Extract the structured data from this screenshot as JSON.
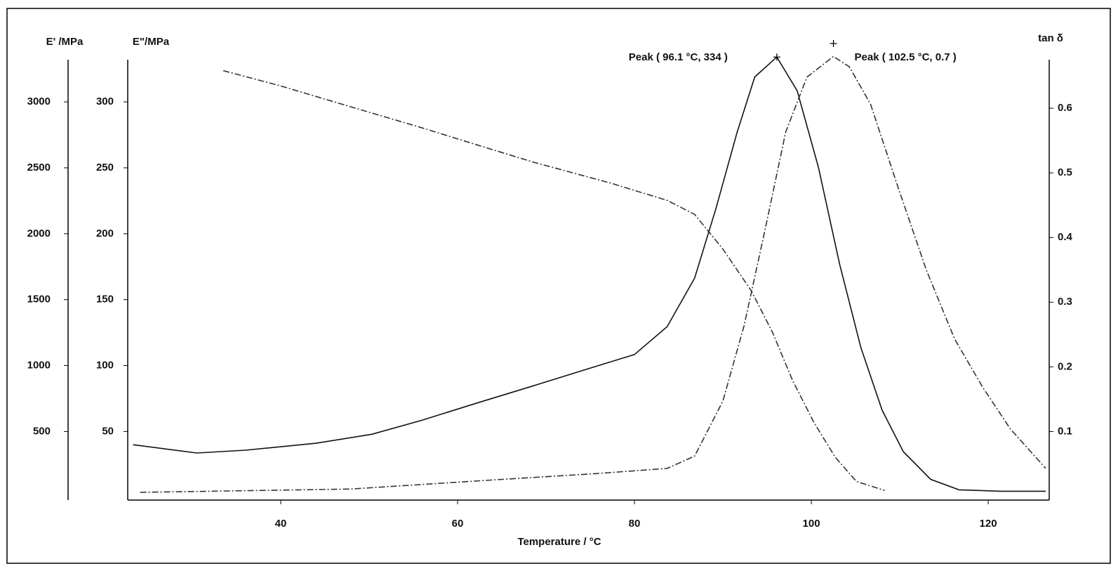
{
  "chart_data": {
    "type": "line",
    "xlabel": "Temperature / °C",
    "ylabel": "E\"/MPa",
    "y2label": "tan δ",
    "y3label": "E' /MPa",
    "xlim": [
      22.7,
      126.9
    ],
    "xticks": [
      40,
      60,
      80,
      100,
      120
    ],
    "ylim": [
      -2,
      332
    ],
    "yticks": [
      50,
      100,
      150,
      200,
      250,
      300
    ],
    "y2lim": [
      -0.006,
      0.675
    ],
    "y2ticks": [
      0.1,
      0.2,
      0.3,
      0.4,
      0.5,
      0.6
    ],
    "y3lim": [
      -20,
      3320
    ],
    "y3ticks": [
      500,
      1000,
      1500,
      2000,
      2500,
      3000
    ],
    "series": [
      {
        "axis": "y3",
        "color": "#333333",
        "style": "dashdot",
        "x": [
          33.5,
          40,
          47.9,
          55.9,
          62.2,
          68.6,
          77.3,
          83.7,
          86.8,
          90.0,
          93.2,
          95.6,
          97.9,
          100.3,
          102.7,
          105.1,
          108.3
        ],
        "values": [
          3237,
          3121,
          2963,
          2805,
          2674,
          2542,
          2384,
          2253,
          2147,
          1884,
          1568,
          1253,
          884,
          568,
          305,
          121,
          53
        ]
      },
      {
        "axis": "y",
        "color": "#111111",
        "style": "solid",
        "x": [
          23.3,
          30.5,
          36.0,
          44.0,
          50.3,
          55.9,
          62.2,
          68.6,
          74.9,
          80,
          83.7,
          86.8,
          89.2,
          91.6,
          93.6,
          96.1,
          98.4,
          100.8,
          103.2,
          105.6,
          108,
          110.4,
          113.5,
          116.7,
          121.4,
          126.5
        ],
        "values": [
          40,
          33.7,
          35.8,
          41.1,
          47.9,
          58.4,
          71.6,
          84.7,
          97.9,
          108.4,
          129.5,
          166.3,
          218.9,
          276.8,
          318.9,
          334,
          308.4,
          250.5,
          176.8,
          113.7,
          66.3,
          34.7,
          13.7,
          5.8,
          4.7,
          4.7
        ]
      },
      {
        "axis": "y2",
        "color": "#333333",
        "style": "dashdot",
        "x": [
          24.1,
          47.9,
          63.8,
          75.7,
          83.7,
          86.8,
          90.0,
          92.4,
          94.8,
          97.1,
          99.5,
          102.5,
          104.3,
          106.7,
          109.8,
          113.0,
          116.2,
          119.4,
          122.5,
          126.5
        ],
        "values": [
          0.006,
          0.011,
          0.025,
          0.035,
          0.043,
          0.062,
          0.147,
          0.264,
          0.414,
          0.563,
          0.648,
          0.68,
          0.664,
          0.606,
          0.478,
          0.35,
          0.243,
          0.168,
          0.104,
          0.043
        ]
      }
    ],
    "annotations": [
      {
        "label": "Peak ( 96.1  °C,  334 )",
        "x": 96.1,
        "y": 334,
        "axis": "y"
      },
      {
        "label": "Peak ( 102.5  °C, 0.7 )",
        "x": 102.5,
        "y": 0.7,
        "axis": "y2"
      }
    ]
  }
}
